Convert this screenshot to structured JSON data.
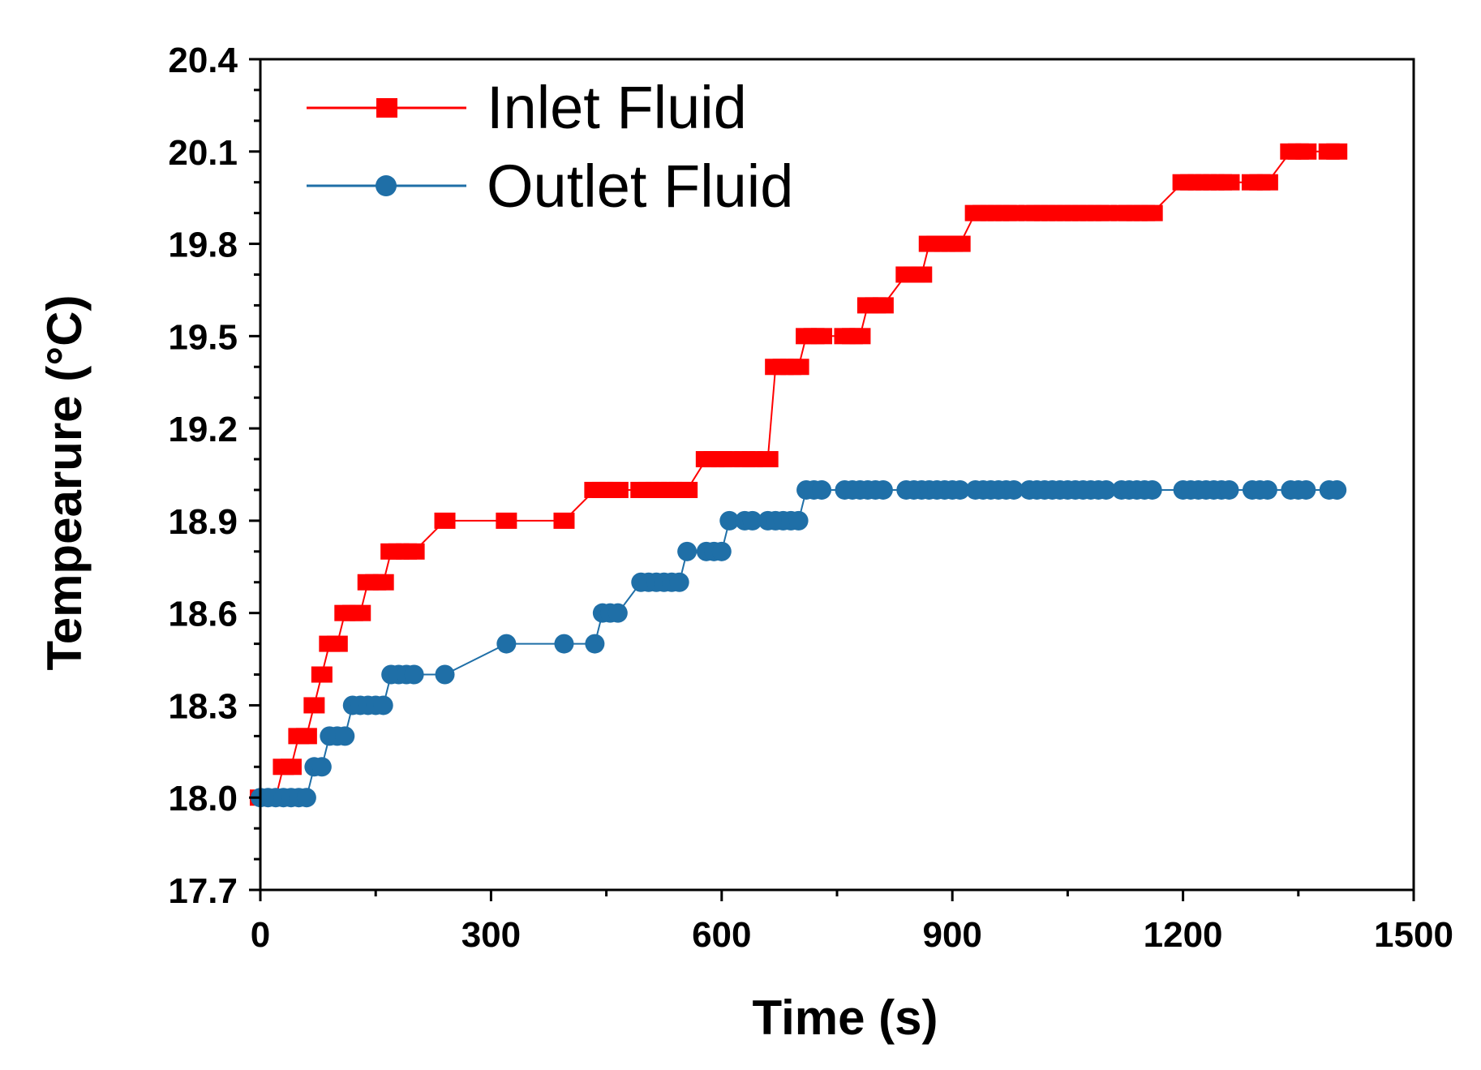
{
  "chart_data": {
    "type": "line",
    "title": "",
    "xlabel": "Time (s)",
    "ylabel": "Tempearure (°C)",
    "xlim": [
      0,
      1500
    ],
    "ylim": [
      17.7,
      20.4
    ],
    "xticks": [
      0,
      300,
      600,
      900,
      1200,
      1500
    ],
    "yticks": [
      17.7,
      18.0,
      18.3,
      18.6,
      18.9,
      19.2,
      19.5,
      19.8,
      20.1,
      20.4
    ],
    "xtick_labels": [
      "0",
      "300",
      "600",
      "900",
      "1200",
      "1500"
    ],
    "ytick_labels": [
      "17.7",
      "18.0",
      "18.3",
      "18.6",
      "18.9",
      "19.2",
      "19.5",
      "19.8",
      "20.1",
      "20.4"
    ],
    "legend_position": "top-left",
    "series": [
      {
        "name": "Inlet Fluid",
        "color": "#ff0000",
        "marker": "square",
        "x": [
          0,
          10,
          20,
          30,
          40,
          50,
          60,
          70,
          80,
          90,
          100,
          110,
          120,
          130,
          140,
          150,
          160,
          170,
          180,
          190,
          200,
          240,
          320,
          395,
          435,
          445,
          455,
          465,
          495,
          505,
          515,
          525,
          535,
          545,
          555,
          580,
          590,
          600,
          610,
          630,
          640,
          660,
          670,
          680,
          690,
          700,
          710,
          720,
          730,
          760,
          770,
          780,
          790,
          800,
          810,
          840,
          850,
          860,
          870,
          880,
          890,
          900,
          910,
          930,
          940,
          950,
          960,
          970,
          980,
          1000,
          1010,
          1020,
          1030,
          1040,
          1050,
          1060,
          1070,
          1080,
          1090,
          1100,
          1120,
          1130,
          1140,
          1150,
          1160,
          1200,
          1210,
          1220,
          1230,
          1240,
          1250,
          1260,
          1290,
          1300,
          1310,
          1340,
          1350,
          1360,
          1390,
          1400
        ],
        "y": [
          18.0,
          18.0,
          18.0,
          18.1,
          18.1,
          18.2,
          18.2,
          18.3,
          18.4,
          18.5,
          18.5,
          18.6,
          18.6,
          18.6,
          18.7,
          18.7,
          18.7,
          18.8,
          18.8,
          18.8,
          18.8,
          18.9,
          18.9,
          18.9,
          19.0,
          19.0,
          19.0,
          19.0,
          19.0,
          19.0,
          19.0,
          19.0,
          19.0,
          19.0,
          19.0,
          19.1,
          19.1,
          19.1,
          19.1,
          19.1,
          19.1,
          19.1,
          19.4,
          19.4,
          19.4,
          19.4,
          19.5,
          19.5,
          19.5,
          19.5,
          19.5,
          19.5,
          19.6,
          19.6,
          19.6,
          19.7,
          19.7,
          19.7,
          19.8,
          19.8,
          19.8,
          19.8,
          19.8,
          19.9,
          19.9,
          19.9,
          19.9,
          19.9,
          19.9,
          19.9,
          19.9,
          19.9,
          19.9,
          19.9,
          19.9,
          19.9,
          19.9,
          19.9,
          19.9,
          19.9,
          19.9,
          19.9,
          19.9,
          19.9,
          19.9,
          20.0,
          20.0,
          20.0,
          20.0,
          20.0,
          20.0,
          20.0,
          20.0,
          20.0,
          20.0,
          20.1,
          20.1,
          20.1,
          20.1,
          20.1
        ]
      },
      {
        "name": "Outlet Fluid",
        "color": "#1f6fa7",
        "marker": "circle",
        "x": [
          0,
          10,
          20,
          30,
          40,
          50,
          60,
          70,
          80,
          90,
          100,
          110,
          120,
          130,
          140,
          150,
          160,
          170,
          180,
          190,
          200,
          240,
          320,
          395,
          435,
          445,
          455,
          465,
          495,
          505,
          515,
          525,
          535,
          545,
          555,
          580,
          590,
          600,
          610,
          630,
          640,
          660,
          670,
          680,
          690,
          700,
          710,
          720,
          730,
          760,
          770,
          780,
          790,
          800,
          810,
          840,
          850,
          860,
          870,
          880,
          890,
          900,
          910,
          930,
          940,
          950,
          960,
          970,
          980,
          1000,
          1010,
          1020,
          1030,
          1040,
          1050,
          1060,
          1070,
          1080,
          1090,
          1100,
          1120,
          1130,
          1140,
          1150,
          1160,
          1200,
          1210,
          1220,
          1230,
          1240,
          1250,
          1260,
          1290,
          1300,
          1310,
          1340,
          1350,
          1360,
          1390,
          1400
        ],
        "y": [
          18.0,
          18.0,
          18.0,
          18.0,
          18.0,
          18.0,
          18.0,
          18.1,
          18.1,
          18.2,
          18.2,
          18.2,
          18.3,
          18.3,
          18.3,
          18.3,
          18.3,
          18.4,
          18.4,
          18.4,
          18.4,
          18.4,
          18.5,
          18.5,
          18.5,
          18.6,
          18.6,
          18.6,
          18.7,
          18.7,
          18.7,
          18.7,
          18.7,
          18.7,
          18.8,
          18.8,
          18.8,
          18.8,
          18.9,
          18.9,
          18.9,
          18.9,
          18.9,
          18.9,
          18.9,
          18.9,
          19.0,
          19.0,
          19.0,
          19.0,
          19.0,
          19.0,
          19.0,
          19.0,
          19.0,
          19.0,
          19.0,
          19.0,
          19.0,
          19.0,
          19.0,
          19.0,
          19.0,
          19.0,
          19.0,
          19.0,
          19.0,
          19.0,
          19.0,
          19.0,
          19.0,
          19.0,
          19.0,
          19.0,
          19.0,
          19.0,
          19.0,
          19.0,
          19.0,
          19.0,
          19.0,
          19.0,
          19.0,
          19.0,
          19.0,
          19.0,
          19.0,
          19.0,
          19.0,
          19.0,
          19.0,
          19.0,
          19.0,
          19.0,
          19.0,
          19.0,
          19.0,
          19.0,
          19.0,
          19.0
        ]
      }
    ]
  }
}
